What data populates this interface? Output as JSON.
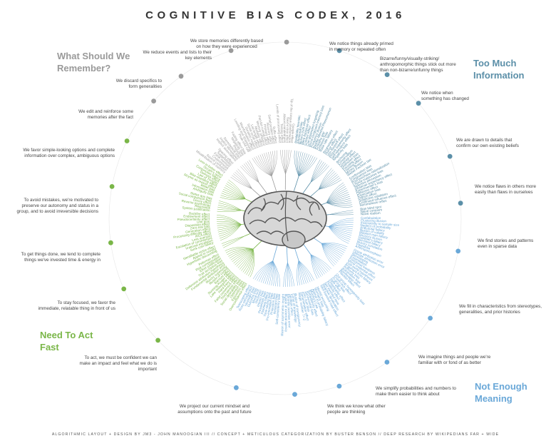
{
  "title": "COGNITIVE BIAS CODEX, 2016",
  "footer": "ALGORITHMIC LAYOUT + DESIGN BY JM3 - JOHN MANOOGIAN III // CONCEPT + METICULOUS CATEGORIZATION BY BUSTER BENSON // DEEP RESEARCH BY WIKIPEDIANS FAR + WIDE",
  "colors": {
    "remember": "#9a9a9a",
    "information": "#5b8fa8",
    "meaning": "#6aa8d8",
    "act": "#7ab648"
  },
  "quadrants": {
    "remember": "What Should We Remember?",
    "information": "Too Much Information",
    "meaning": "Not Enough Meaning",
    "act": "Need To Act Fast"
  },
  "notes": {
    "n01": "We store memories differently based on how they were experienced",
    "n02": "We reduce events and lists to their key elements",
    "n03": "We discard specifics to form generalities",
    "n04": "We edit and reinforce some memories after the fact",
    "n05": "We notice things already primed in memory or repeated often",
    "n06": "Bizarre/funny/visually-striking/ anthropomorphic things stick out more than non-bizarre/unfunny things",
    "n07": "We notice when something has changed",
    "n08": "We are drawn to details that confirm our own existing beliefs",
    "n09": "We notice flaws in others more easily than flaws in ourselves",
    "n10": "We find stories and patterns even in sparse data",
    "n11": "We fill in characteristics from stereotypes, generalities, and prior histories",
    "n12": "We imagine things and people we're familiar with or fond of as better",
    "n13": "We simplify probabilities and numbers to make them easier to think about",
    "n14": "We think we know what other people are thinking",
    "n15": "We project our current mindset and assumptions onto the past and future",
    "n16": "To act, we must be confident we can make an impact and feel what we do is important",
    "n17": "To stay focused, we favor the immediate, relatable thing in front of us",
    "n18": "To get things done, we tend to complete things we've invested time & energy in",
    "n19": "To avoid mistakes, we're motivated to preserve our autonomy and status in a group, and to avoid irreversible decisions",
    "n20": "We favor simple-looking options and complete information over complex, ambiguous options"
  },
  "bias_groups": [
    {
      "color": "information",
      "items": [
        "Availability heuristic",
        "Attentional bias",
        "Illusory truth effect",
        "Mere exposure effect",
        "Context effect",
        "Cue-dependent forgetting",
        "Mood-congruent memory bias",
        "Frequency illusion",
        "Baader-Meinhof Phenomenon",
        "Empathy gap",
        "Omission bias",
        "Base rate fallacy"
      ]
    },
    {
      "color": "information",
      "items": [
        "Bizarreness effect",
        "Humor effect",
        "Von Restorff effect",
        "Picture superiority effect",
        "Self-relevance effect",
        "Negativity bias"
      ]
    },
    {
      "color": "information",
      "items": [
        "Anchoring",
        "Conservatism",
        "Contrast effect",
        "Distinction bias",
        "Focusing effect",
        "Framing effect",
        "Money illusion",
        "Weber-Fechner law"
      ]
    },
    {
      "color": "information",
      "items": [
        "Confirmation bias",
        "Congruence bias",
        "Post-purchase rationalization",
        "Choice-supportive bias",
        "Selective perception",
        "Observer-expectancy effect",
        "Experimenter's bias",
        "Observer effect",
        "Expectation bias",
        "Ostrich effect",
        "Subjective validation",
        "Continued influence effect",
        "Semmelweis reflex"
      ]
    },
    {
      "color": "information",
      "items": [
        "Bias blind spot",
        "Naive cynicism",
        "Naive realism"
      ]
    },
    {
      "color": "meaning",
      "items": [
        "Confabulation",
        "Clustering illusion",
        "Insensitivity to sample size",
        "Neglect of probability",
        "Anecdotal fallacy",
        "Illusion of validity",
        "Masked man fallacy",
        "Recency illusion",
        "Gambler's fallacy",
        "Hot-hand fallacy",
        "Illusory correlation",
        "Pareidolia",
        "Anthropomorphism"
      ]
    },
    {
      "color": "meaning",
      "items": [
        "Group attribution error",
        "Ultimate attribution error",
        "Stereotyping",
        "Essentialism",
        "Functional fixedness",
        "Moral credential effect",
        "Just-world hypothesis",
        "Argument from fallacy",
        "Authority bias",
        "Automation bias",
        "Bandwagon effect",
        "Placebo effect"
      ]
    },
    {
      "color": "meaning",
      "items": [
        "Out-group homogeneity bias",
        "Cross-race effect",
        "In-group bias",
        "Halo effect",
        "Cheerleader effect",
        "Positivity effect",
        "Not invented here",
        "Reactive devaluation",
        "Well-traveled road effect"
      ]
    },
    {
      "color": "meaning",
      "items": [
        "Mental accounting",
        "Normalcy bias",
        "Appeal to probability fallacy",
        "Murphy's Law",
        "Subadditivity effect",
        "Survivorship bias",
        "Zero sum bias",
        "Denomination effect",
        "Magic number 7+-2"
      ]
    },
    {
      "color": "meaning",
      "items": [
        "Illusion of transparency",
        "Curse of knowledge",
        "Spotlight effect",
        "Extrinsic incentive error",
        "Illusion of external agency",
        "Illusion of asymmetric insight"
      ]
    },
    {
      "color": "meaning",
      "items": [
        "Self-consistency bias",
        "Resistant bias",
        "Projection bias",
        "Pro-innovation bias",
        "Time-saving bias",
        "Planning fallacy",
        "Pessimism bias",
        "Impact bias",
        "Declinism",
        "Moral luck",
        "Outcome bias",
        "Hindsight bias",
        "Rosy retrospection",
        "Telescoping effect"
      ]
    },
    {
      "color": "act",
      "items": [
        "Overconfidence effect",
        "Egocentric bias",
        "Optimism bias",
        "Social desirability bias",
        "Third-person effect",
        "False consensus effect",
        "Hard-easy effect",
        "Lake Wobegone effect",
        "Dunning-Kruger effect",
        "Barnum effect",
        "Illusion of control",
        "Illusory superiority",
        "Fundamental attribution error",
        "Defensive attribution hypothesis",
        "Trait ascription bias",
        "Effort justification",
        "Risk compensation",
        "Peltzman effect"
      ]
    },
    {
      "color": "act",
      "items": [
        "Hyperbolic discounting",
        "Appeal to novelty",
        "Identifiable victim effect"
      ]
    },
    {
      "color": "act",
      "items": [
        "Sunk cost fallacy",
        "Irrational escalation",
        "Escalation of commitment",
        "Loss aversion",
        "IKEA effect",
        "Processing difficulty effect",
        "Generation effect",
        "Zero-risk bias",
        "Disposition effect",
        "Unit bias",
        "Pseudocertainty effect",
        "Endowment effect",
        "Backfire effect"
      ]
    },
    {
      "color": "act",
      "items": [
        "System justification",
        "Reactance",
        "Reverse psychology",
        "Decoy effect",
        "Social comparison bias",
        "Status quo bias"
      ]
    },
    {
      "color": "act",
      "items": [
        "Ambiguity bias",
        "Information bias",
        "Belief bias",
        "Rhyme as reason effect",
        "Bike-shedding effect",
        "Law of Triviality",
        "Delmore effect",
        "Conjunction fallacy",
        "Occam's razor",
        "Less-is-better effect"
      ]
    },
    {
      "color": "remember",
      "items": [
        "Misattribution of memory",
        "Source confusion",
        "Cryptomnesia",
        "False memory",
        "Suggestibility",
        "Spacing effect"
      ]
    },
    {
      "color": "remember",
      "items": [
        "Implicit associations",
        "Implicit stereotypes",
        "Stereotypical bias",
        "Prejudice",
        "Negativity bias",
        "Fading affect bias"
      ]
    },
    {
      "color": "remember",
      "items": [
        "Peak-end rule",
        "Leveling and sharpening",
        "Misinformation effect",
        "Duration neglect",
        "Serial recall effect",
        "List-length effect",
        "Modality effect",
        "Memory inhibition",
        "Part-list cueing effect",
        "Primacy effect",
        "Recency effect",
        "Serial position effect",
        "Suffix effect"
      ]
    },
    {
      "color": "remember",
      "items": [
        "Levels of processing effect",
        "Testing effect",
        "Absent-mindedness",
        "Next-in-line effect",
        "Tip of the tongue phenomenon",
        "Google effect"
      ]
    }
  ]
}
